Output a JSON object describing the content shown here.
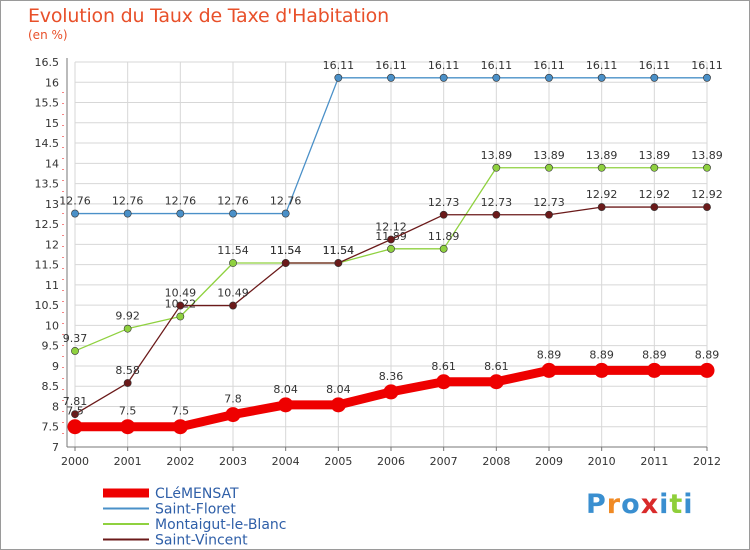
{
  "chart_data": {
    "type": "line",
    "title": "Evolution du Taux de Taxe d'Habitation",
    "subtitle": "(en %)",
    "x": [
      "2000",
      "2001",
      "2002",
      "2003",
      "2004",
      "2005",
      "2006",
      "2007",
      "2008",
      "2009",
      "2010",
      "2011",
      "2012"
    ],
    "ylim": [
      7,
      16.5
    ],
    "yticks": [
      "7",
      "7.5",
      "8",
      "8.5",
      "9",
      "9.5",
      "10",
      "10.5",
      "11",
      "11.5",
      "12",
      "12.5",
      "13",
      "13.5",
      "14",
      "14.5",
      "15",
      "15.5",
      "16",
      "16.5"
    ],
    "grid": true,
    "legend_position": "bottom-left",
    "series": [
      {
        "name": "CLéMENSAT",
        "color": "#ee0000",
        "values": [
          7.5,
          7.5,
          7.5,
          7.8,
          8.04,
          8.04,
          8.36,
          8.61,
          8.61,
          8.89,
          8.89,
          8.89,
          8.89
        ],
        "labels": [
          "7.5",
          "7.5",
          "7.5",
          "7.8",
          "8.04",
          "8.04",
          "8.36",
          "8.61",
          "8.61",
          "8.89",
          "8.89",
          "8.89",
          "8.89"
        ]
      },
      {
        "name": "Saint-Floret",
        "color": "#4a90c8",
        "values": [
          12.76,
          12.76,
          12.76,
          12.76,
          12.76,
          16.11,
          16.11,
          16.11,
          16.11,
          16.11,
          16.11,
          16.11,
          16.11
        ],
        "labels": [
          "12.76",
          "12.76",
          "12.76",
          "12.76",
          "12.76",
          "16.11",
          "16.11",
          "16.11",
          "16.11",
          "16.11",
          "16.11",
          "16.11",
          "16.11"
        ]
      },
      {
        "name": "Montaigut-le-Blanc",
        "color": "#8fd13f",
        "values": [
          9.37,
          9.92,
          10.22,
          11.54,
          11.54,
          11.54,
          11.89,
          11.89,
          13.89,
          13.89,
          13.89,
          13.89,
          13.89
        ],
        "labels": [
          "9.37",
          "9.92",
          "10.22",
          "11.54",
          "11.54",
          "11.54",
          "11.89",
          "11.89",
          "13.89",
          "13.89",
          "13.89",
          "13.89",
          "13.89"
        ]
      },
      {
        "name": "Saint-Vincent",
        "color": "#6b1a1a",
        "values": [
          7.81,
          8.58,
          10.49,
          10.49,
          11.54,
          11.54,
          12.12,
          12.73,
          12.73,
          12.73,
          12.92,
          12.92,
          12.92
        ],
        "labels": [
          "7.81",
          "8.58",
          "10.49",
          "10.49",
          "11.54",
          "11.54",
          "12.12",
          "12.73",
          "12.73",
          "12.73",
          "12.92",
          "12.92",
          "12.92"
        ]
      }
    ]
  },
  "logo": {
    "text": "Proxiti",
    "colors": [
      "#3a8fd0",
      "#f08a24",
      "#3a8fd0",
      "#d92a2a",
      "#3a8fd0",
      "#8fcf3a",
      "#3a8fd0"
    ]
  }
}
